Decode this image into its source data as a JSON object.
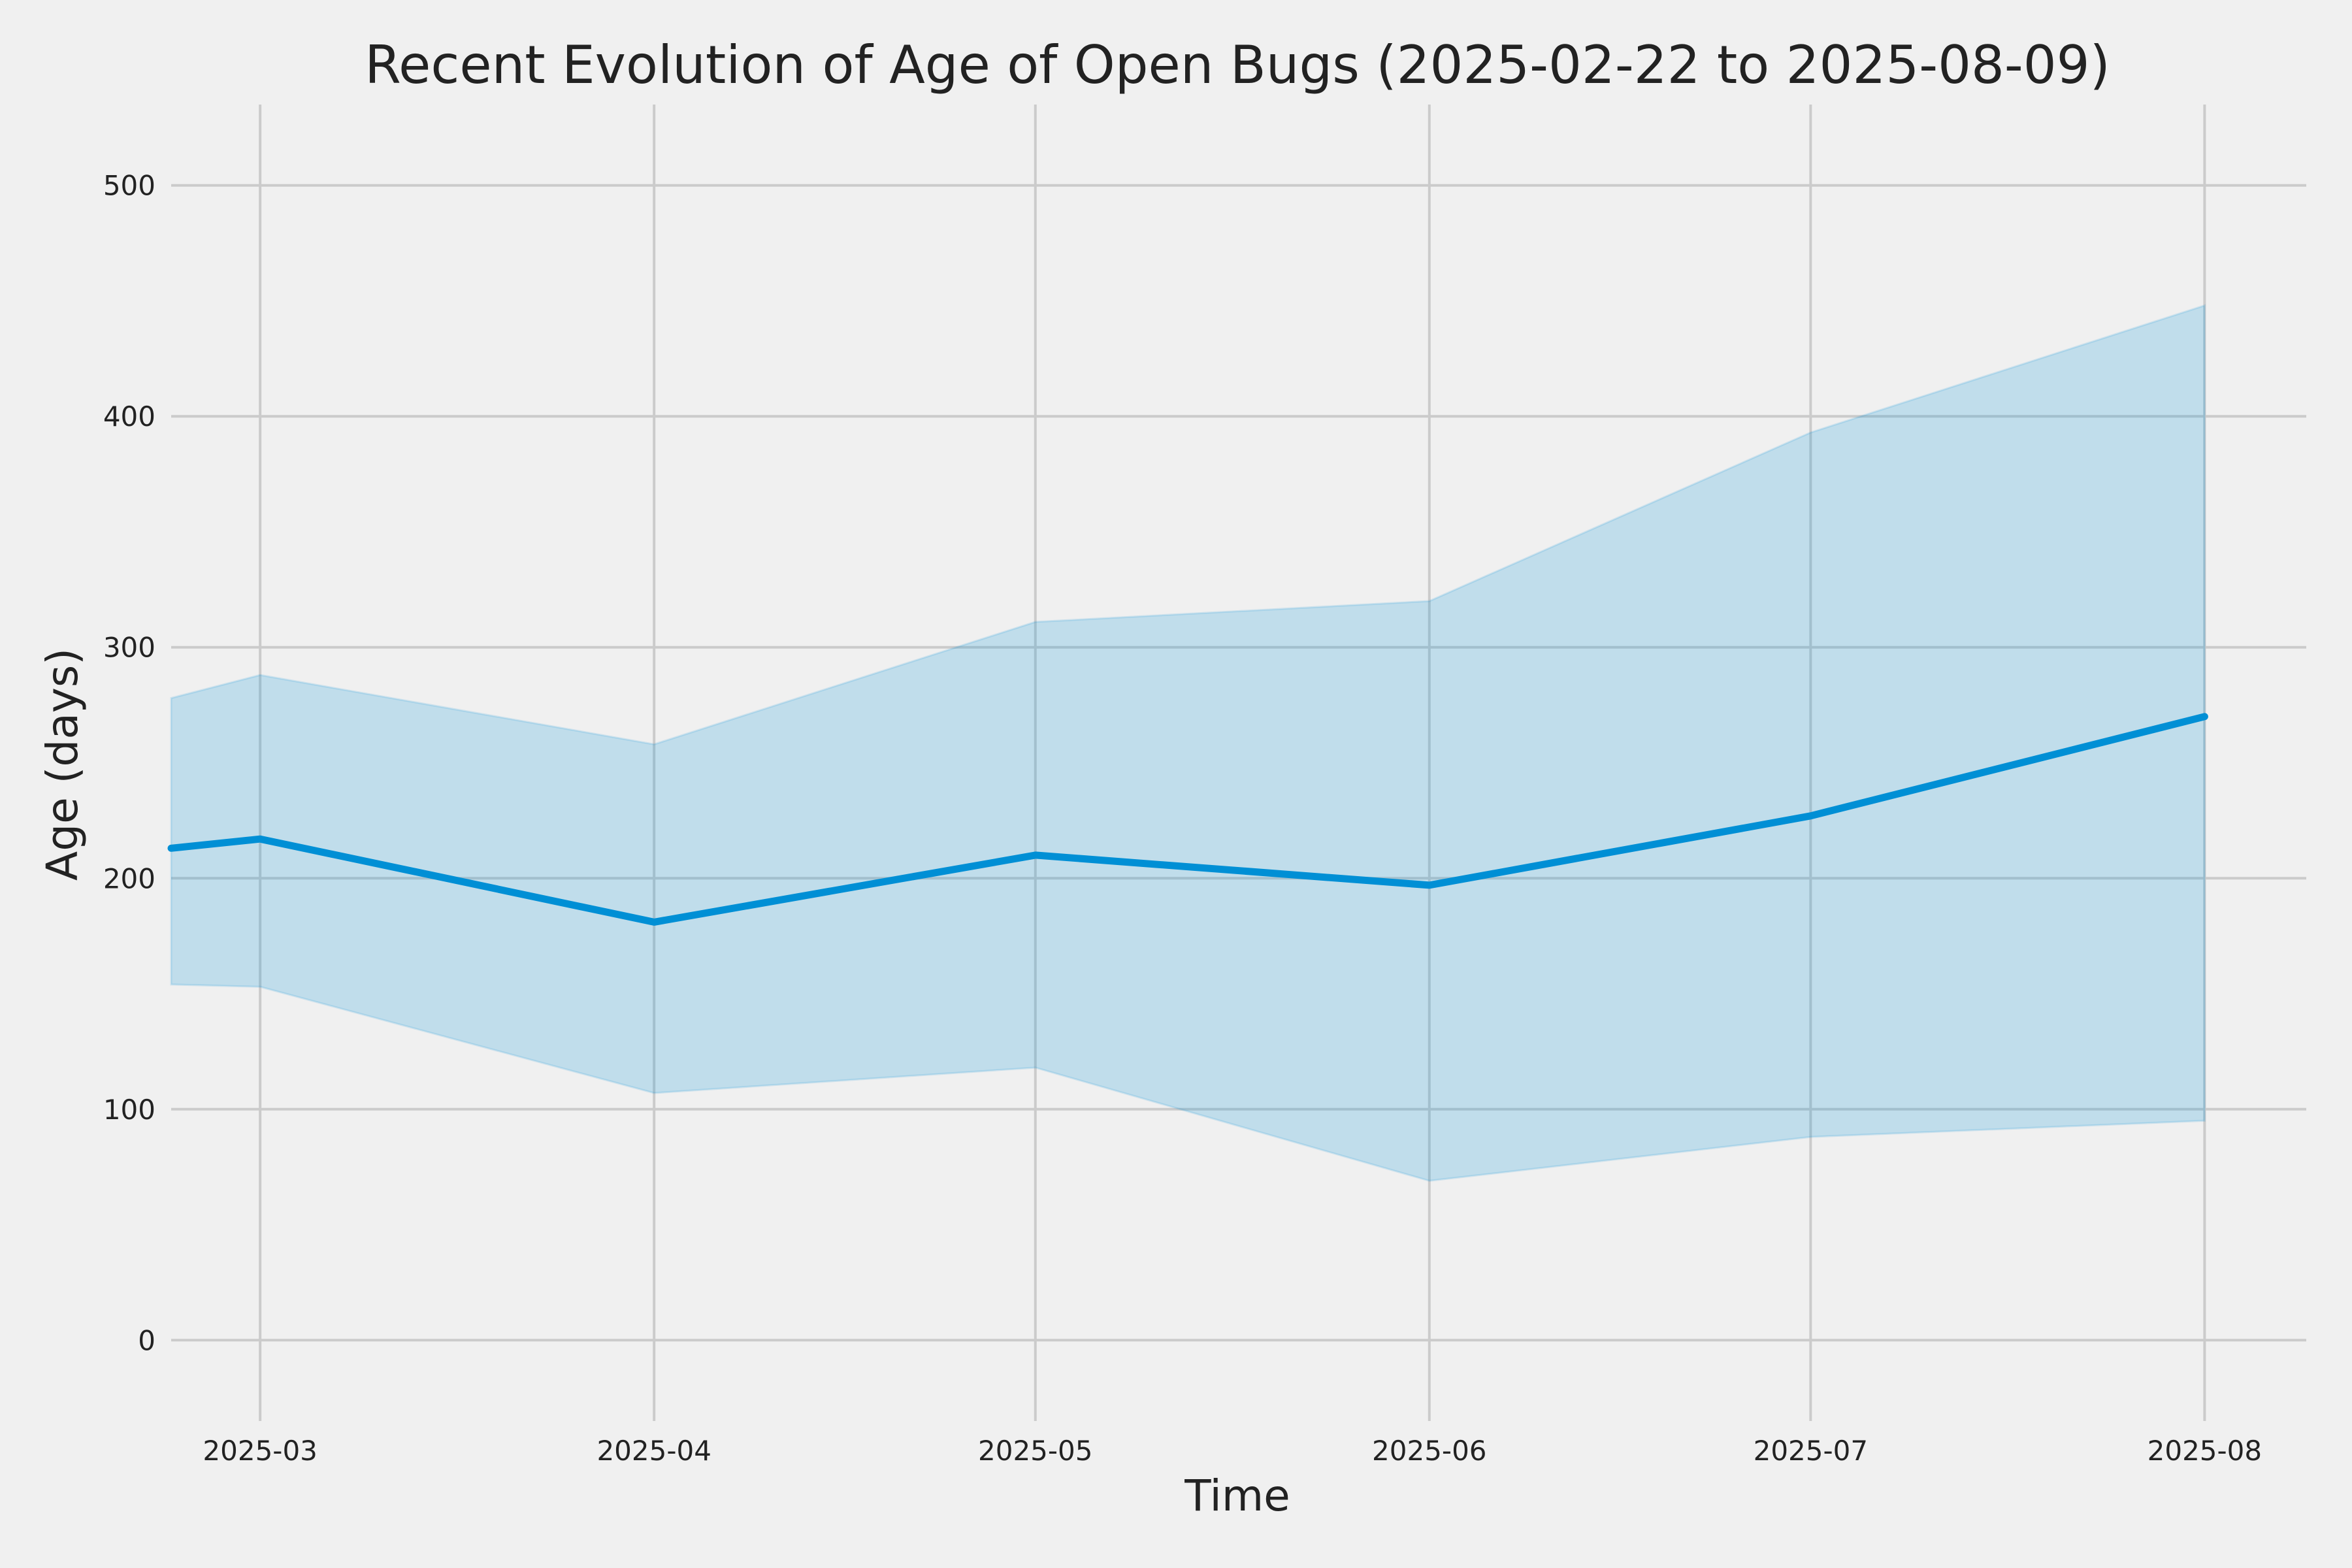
{
  "chart_data": {
    "type": "area",
    "title": "Recent Evolution of Age of Open Bugs (2025-02-22 to 2025-08-09)",
    "xlabel": "Time",
    "ylabel": "Age (days)",
    "x": [
      "2025-02-22",
      "2025-03-01",
      "2025-04-01",
      "2025-05-01",
      "2025-06-01",
      "2025-07-01",
      "2025-08-01"
    ],
    "series": [
      {
        "values": [
          213,
          217,
          181,
          210,
          197,
          227,
          270
        ],
        "lower": [
          154,
          153,
          107,
          118,
          69,
          88,
          95
        ],
        "upper": [
          278,
          288,
          258,
          311,
          320,
          393,
          448
        ],
        "color": "#008fd5",
        "band_color": "#008fd5"
      }
    ],
    "xlim": [
      "2025-02-22",
      "2025-08-09"
    ],
    "ylim": [
      -35,
      535
    ],
    "x_ticks": [
      {
        "date": "2025-03-01",
        "label": "2025-03"
      },
      {
        "date": "2025-04-01",
        "label": "2025-04"
      },
      {
        "date": "2025-05-01",
        "label": "2025-05"
      },
      {
        "date": "2025-06-01",
        "label": "2025-06"
      },
      {
        "date": "2025-07-01",
        "label": "2025-07"
      },
      {
        "date": "2025-08-01",
        "label": "2025-08"
      }
    ],
    "y_ticks": [
      0,
      100,
      200,
      300,
      400,
      500
    ],
    "grid": true,
    "background": "#f0f0f0",
    "grid_color": "#cbcbcb"
  }
}
